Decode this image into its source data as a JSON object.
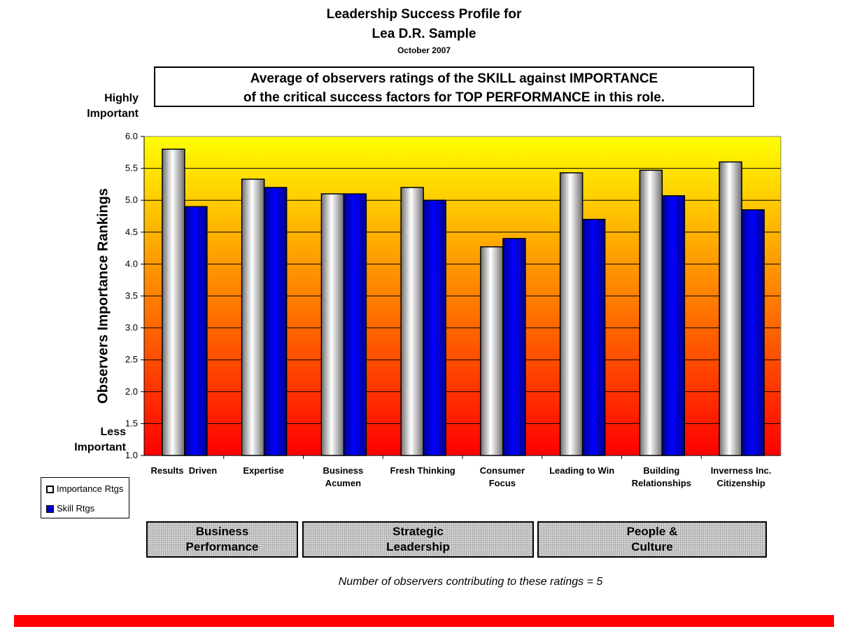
{
  "header": {
    "title_line1": "Leadership Success Profile for",
    "title_line2": "Lea D.R. Sample",
    "date": "October 2007",
    "subtitle_line1": "Average of observers ratings of the SKILL against IMPORTANCE",
    "subtitle_line2": "of the critical success factors for TOP PERFORMANCE in this role."
  },
  "annotations": {
    "highly_important_1": "Highly",
    "highly_important_2": "Important",
    "less_important_1": "Less",
    "less_important_2": "Important",
    "footnote": "Number of observers contributing to these ratings = 5"
  },
  "groups": [
    {
      "line1": "Business",
      "line2": "Performance"
    },
    {
      "line1": "Strategic",
      "line2": "Leadership"
    },
    {
      "line1": "People &",
      "line2": "Culture"
    }
  ],
  "colors": {
    "importance": "#c8c8c8",
    "skill": "#0000cc",
    "bg_top": "#ffff00",
    "bg_bottom": "#ff0000",
    "footer_bar": "#ff0000"
  },
  "chart_data": {
    "type": "bar",
    "ylabel": "Observers Importance Rankings",
    "ylim": [
      1.0,
      6.0
    ],
    "yticks": [
      "1.0",
      "1.5",
      "2.0",
      "2.5",
      "3.0",
      "3.5",
      "4.0",
      "4.5",
      "5.0",
      "5.5",
      "6.0"
    ],
    "grid": true,
    "legend": "bottom-left",
    "categories": [
      [
        "Results  Driven"
      ],
      [
        "Expertise"
      ],
      [
        "Business",
        "Acumen"
      ],
      [
        "Fresh Thinking"
      ],
      [
        "Consumer",
        "Focus"
      ],
      [
        "Leading to Win"
      ],
      [
        "Building",
        "Relationships"
      ],
      [
        "Inverness Inc.",
        "Citizenship"
      ]
    ],
    "series": [
      {
        "name": "Importance Rtgs",
        "values": [
          5.8,
          5.33,
          5.1,
          5.2,
          4.27,
          5.43,
          5.47,
          5.6
        ]
      },
      {
        "name": "Skill Rtgs",
        "values": [
          4.9,
          5.2,
          5.1,
          5.0,
          4.4,
          4.7,
          5.07,
          4.85
        ]
      }
    ]
  }
}
